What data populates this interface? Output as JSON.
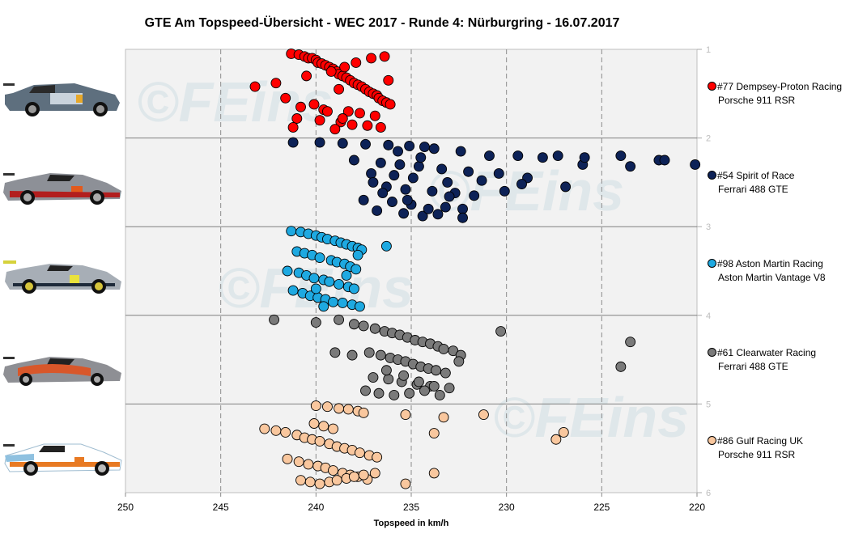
{
  "chart_data": {
    "type": "scatter",
    "title": "GTE Am  Topspeed-Übersicht  - WEC 2017  - Runde  4: Nürburgring  - 16.07.2017",
    "xlabel": "Topspeed in km/h",
    "ylabel": "",
    "xlim": [
      250,
      220
    ],
    "xticks": [
      250,
      245,
      240,
      235,
      230,
      225,
      220
    ],
    "ylim": [
      1,
      6
    ],
    "yticks": [
      1,
      2,
      3,
      4,
      5,
      6
    ],
    "grid": true,
    "legend_position": "right",
    "series": [
      {
        "name_line1": "#77 Dempsey-Proton Racing",
        "name_line2": "Porsche 911 RSR",
        "color": "#ff0000",
        "y_min": 1.05,
        "y_max": 1.9,
        "x": [
          241.3,
          240.9,
          240.6,
          240.4,
          240.2,
          240.0,
          239.9,
          239.7,
          239.5,
          239.3,
          239.1,
          238.9,
          238.8,
          238.6,
          238.4,
          238.2,
          238.0,
          237.8,
          237.6,
          237.4,
          237.2,
          237.0,
          236.8,
          236.7,
          236.5,
          236.3,
          236.1,
          240.8,
          239.6,
          238.3,
          237.7,
          236.9,
          241.0,
          239.8,
          238.7,
          238.1,
          237.3,
          236.6,
          243.2,
          242.1,
          240.5,
          239.2,
          238.5,
          237.9,
          237.1,
          236.4,
          241.6,
          240.1,
          239.4,
          238.6,
          236.2,
          241.2,
          239.0,
          238.8
        ],
        "y": [
          1.05,
          1.06,
          1.08,
          1.1,
          1.1,
          1.12,
          1.15,
          1.16,
          1.18,
          1.2,
          1.22,
          1.25,
          1.28,
          1.3,
          1.32,
          1.35,
          1.38,
          1.4,
          1.42,
          1.45,
          1.48,
          1.5,
          1.52,
          1.55,
          1.58,
          1.6,
          1.62,
          1.65,
          1.68,
          1.7,
          1.72,
          1.75,
          1.78,
          1.8,
          1.82,
          1.85,
          1.86,
          1.88,
          1.42,
          1.38,
          1.3,
          1.25,
          1.2,
          1.15,
          1.1,
          1.08,
          1.55,
          1.62,
          1.7,
          1.78,
          1.35,
          1.88,
          1.9,
          1.45
        ]
      },
      {
        "name_line1": "#54 Spirit of Race",
        "name_line2": "Ferrari 488 GTE",
        "color": "#0d2257",
        "y_min": 2.05,
        "y_max": 2.9,
        "x": [
          241.2,
          239.8,
          238.6,
          237.4,
          236.2,
          235.1,
          234.3,
          233.8,
          232.4,
          230.9,
          229.4,
          228.1,
          226.0,
          224.0,
          222.0,
          220.1,
          238.0,
          236.6,
          235.6,
          234.6,
          233.4,
          232.0,
          230.4,
          228.9,
          227.3,
          225.9,
          223.5,
          221.7,
          237.1,
          235.9,
          234.9,
          233.1,
          231.3,
          229.2,
          226.9,
          236.3,
          235.3,
          233.9,
          232.7,
          231.7,
          230.1,
          237.5,
          236.0,
          235.0,
          233.2,
          232.3,
          236.8,
          235.4,
          234.4,
          233.6,
          235.7,
          234.5,
          233.0,
          232.3,
          236.5,
          235.2,
          234.1,
          237.0
        ],
        "y": [
          2.05,
          2.05,
          2.06,
          2.07,
          2.08,
          2.09,
          2.1,
          2.12,
          2.15,
          2.2,
          2.2,
          2.22,
          2.3,
          2.2,
          2.25,
          2.3,
          2.25,
          2.28,
          2.3,
          2.32,
          2.35,
          2.38,
          2.4,
          2.45,
          2.2,
          2.22,
          2.32,
          2.25,
          2.4,
          2.42,
          2.45,
          2.5,
          2.48,
          2.52,
          2.55,
          2.55,
          2.58,
          2.6,
          2.62,
          2.65,
          2.6,
          2.7,
          2.72,
          2.75,
          2.78,
          2.8,
          2.82,
          2.85,
          2.88,
          2.86,
          2.15,
          2.22,
          2.66,
          2.9,
          2.62,
          2.7,
          2.8,
          2.5
        ]
      },
      {
        "name_line1": "#98 Aston Martin Racing",
        "name_line2": "Aston Martin Vantage V8",
        "color": "#1ea9e1",
        "y_min": 3.05,
        "y_max": 3.9,
        "x": [
          241.3,
          240.8,
          240.4,
          240.0,
          239.7,
          239.4,
          239.0,
          238.7,
          238.4,
          238.1,
          237.8,
          237.6,
          241.0,
          240.6,
          240.2,
          239.8,
          239.2,
          238.9,
          238.5,
          238.2,
          237.9,
          241.5,
          240.9,
          240.5,
          240.1,
          239.6,
          239.3,
          238.8,
          238.3,
          238.0,
          236.3,
          241.2,
          240.7,
          240.3,
          239.9,
          239.5,
          239.1,
          238.6,
          238.1,
          237.7,
          240.0,
          239.6,
          238.4,
          237.8
        ],
        "y": [
          3.05,
          3.06,
          3.08,
          3.1,
          3.12,
          3.14,
          3.16,
          3.18,
          3.2,
          3.22,
          3.24,
          3.26,
          3.28,
          3.3,
          3.32,
          3.35,
          3.38,
          3.4,
          3.42,
          3.45,
          3.48,
          3.5,
          3.52,
          3.55,
          3.58,
          3.6,
          3.62,
          3.65,
          3.68,
          3.7,
          3.22,
          3.72,
          3.75,
          3.78,
          3.8,
          3.82,
          3.85,
          3.86,
          3.88,
          3.9,
          3.7,
          3.9,
          3.55,
          3.32
        ]
      },
      {
        "name_line1": "#61 Clearwater Racing",
        "name_line2": "Ferrari 488 GTE",
        "color": "#7a7a7a",
        "y_min": 4.05,
        "y_max": 4.9,
        "x": [
          242.2,
          240.0,
          238.8,
          238.0,
          237.5,
          236.9,
          236.4,
          236.0,
          235.6,
          235.2,
          234.8,
          234.4,
          234.0,
          233.6,
          233.3,
          232.8,
          232.4,
          230.3,
          223.5,
          224.0,
          237.2,
          236.6,
          236.1,
          235.7,
          235.3,
          234.9,
          234.5,
          234.1,
          233.7,
          233.2,
          232.5,
          239.0,
          238.1,
          237.0,
          236.2,
          235.5,
          234.7,
          234.0,
          233.0,
          237.4,
          236.7,
          235.9,
          235.1,
          234.3,
          233.5,
          236.3,
          235.4,
          234.6,
          233.8
        ],
        "y": [
          4.05,
          4.08,
          4.05,
          4.1,
          4.12,
          4.15,
          4.18,
          4.2,
          4.22,
          4.25,
          4.28,
          4.3,
          4.32,
          4.35,
          4.38,
          4.4,
          4.45,
          4.18,
          4.3,
          4.58,
          4.42,
          4.45,
          4.48,
          4.5,
          4.52,
          4.55,
          4.58,
          4.6,
          4.62,
          4.65,
          4.52,
          4.42,
          4.45,
          4.7,
          4.72,
          4.75,
          4.78,
          4.8,
          4.82,
          4.85,
          4.88,
          4.9,
          4.88,
          4.85,
          4.9,
          4.62,
          4.68,
          4.75,
          4.8
        ]
      },
      {
        "name_line1": "#86 Gulf Racing UK",
        "name_line2": "Porsche 911 RSR",
        "color": "#f9c79e",
        "y_min": 5.02,
        "y_max": 5.9,
        "x": [
          240.0,
          239.4,
          238.8,
          238.3,
          237.8,
          237.5,
          235.3,
          233.3,
          231.2,
          227.4,
          227.0,
          242.7,
          242.1,
          241.6,
          241.0,
          240.6,
          240.2,
          239.8,
          239.3,
          238.9,
          238.5,
          238.1,
          237.7,
          237.2,
          236.8,
          233.8,
          241.5,
          240.9,
          240.4,
          239.9,
          239.5,
          239.1,
          238.6,
          238.2,
          237.8,
          237.3,
          240.8,
          240.3,
          239.8,
          239.3,
          238.9,
          238.4,
          238.0,
          237.5,
          236.9,
          233.8,
          235.3,
          240.1,
          239.6,
          239.1
        ],
        "y": [
          5.02,
          5.03,
          5.05,
          5.06,
          5.08,
          5.1,
          5.12,
          5.15,
          5.12,
          5.4,
          5.32,
          5.28,
          5.3,
          5.32,
          5.35,
          5.38,
          5.4,
          5.42,
          5.45,
          5.48,
          5.5,
          5.52,
          5.55,
          5.58,
          5.6,
          5.33,
          5.62,
          5.65,
          5.68,
          5.7,
          5.72,
          5.75,
          5.78,
          5.8,
          5.82,
          5.85,
          5.86,
          5.88,
          5.9,
          5.88,
          5.86,
          5.84,
          5.82,
          5.8,
          5.78,
          5.78,
          5.9,
          5.22,
          5.25,
          5.28
        ]
      }
    ],
    "watermark": "©FEins"
  }
}
